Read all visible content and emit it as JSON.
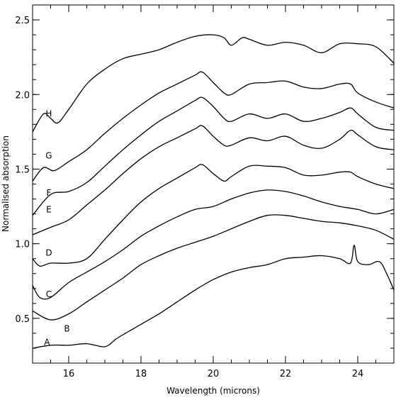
{
  "chart_data": {
    "type": "line",
    "xlabel": "Wavelength (microns)",
    "ylabel": "Normalised absorption",
    "xlim": [
      15.0,
      25.0
    ],
    "ylim": [
      0.2,
      2.6
    ],
    "xticks": [
      16,
      18,
      20,
      22,
      24
    ],
    "yticks": [
      0.5,
      1.0,
      1.5,
      2.0,
      2.5
    ],
    "xtick_labels": [
      "16",
      "18",
      "20",
      "22",
      "24"
    ],
    "ytick_labels": [
      "0.5",
      "1.0",
      "1.5",
      "2.0",
      "2.5"
    ],
    "minor_x_step": 0.5,
    "minor_y_step": 0.1,
    "grid": false,
    "series": [
      {
        "label": "A",
        "label_at": [
          15.4,
          0.34
        ],
        "x": [
          15.0,
          15.5,
          16.0,
          16.5,
          17.0,
          17.3,
          17.5,
          18.0,
          18.5,
          19.0,
          19.5,
          20.0,
          20.5,
          21.0,
          21.5,
          22.0,
          22.5,
          23.0,
          23.5,
          23.8,
          23.9,
          24.0,
          24.3,
          24.6,
          24.8,
          25.0
        ],
        "y": [
          0.3,
          0.32,
          0.32,
          0.33,
          0.31,
          0.36,
          0.39,
          0.46,
          0.53,
          0.61,
          0.69,
          0.76,
          0.81,
          0.84,
          0.86,
          0.9,
          0.91,
          0.92,
          0.9,
          0.87,
          0.99,
          0.88,
          0.86,
          0.88,
          0.8,
          0.69
        ]
      },
      {
        "label": "B",
        "label_at": [
          15.95,
          0.43
        ],
        "x": [
          15.0,
          15.5,
          16.0,
          16.5,
          17.0,
          17.5,
          18.0,
          18.5,
          19.0,
          19.5,
          20.0,
          20.5,
          21.0,
          21.5,
          22.0,
          22.5,
          23.0,
          23.5,
          24.0,
          24.5,
          25.0
        ],
        "y": [
          0.55,
          0.49,
          0.53,
          0.61,
          0.69,
          0.77,
          0.86,
          0.92,
          0.97,
          1.01,
          1.05,
          1.1,
          1.15,
          1.19,
          1.19,
          1.17,
          1.15,
          1.14,
          1.12,
          1.09,
          1.03
        ]
      },
      {
        "label": "C",
        "label_at": [
          15.45,
          0.66
        ],
        "x": [
          15.0,
          15.2,
          15.5,
          16.0,
          16.5,
          17.0,
          17.5,
          18.0,
          18.5,
          19.0,
          19.5,
          20.0,
          20.5,
          21.0,
          21.5,
          22.0,
          22.5,
          23.0,
          23.5,
          24.0,
          24.5,
          25.0
        ],
        "y": [
          0.72,
          0.64,
          0.64,
          0.74,
          0.81,
          0.88,
          0.96,
          1.05,
          1.12,
          1.18,
          1.23,
          1.25,
          1.3,
          1.34,
          1.36,
          1.35,
          1.32,
          1.28,
          1.25,
          1.23,
          1.2,
          1.23
        ]
      },
      {
        "label": "D",
        "label_at": [
          15.45,
          0.94
        ],
        "x": [
          15.0,
          15.2,
          15.5,
          16.0,
          16.5,
          17.0,
          17.5,
          18.0,
          18.5,
          19.0,
          19.5,
          19.7,
          20.0,
          20.3,
          20.5,
          21.0,
          21.5,
          22.0,
          22.5,
          23.0,
          23.5,
          23.8,
          24.0,
          24.5,
          25.0
        ],
        "y": [
          0.9,
          0.85,
          0.87,
          0.87,
          0.9,
          1.03,
          1.16,
          1.28,
          1.37,
          1.44,
          1.51,
          1.53,
          1.47,
          1.42,
          1.45,
          1.52,
          1.52,
          1.51,
          1.46,
          1.46,
          1.48,
          1.48,
          1.45,
          1.4,
          1.37
        ]
      },
      {
        "label": "E",
        "label_at": [
          15.45,
          1.23
        ],
        "x": [
          15.0,
          15.5,
          16.0,
          16.5,
          17.0,
          17.5,
          18.0,
          18.5,
          19.0,
          19.5,
          19.7,
          20.0,
          20.3,
          20.5,
          21.0,
          21.5,
          22.0,
          22.5,
          23.0,
          23.5,
          23.8,
          24.0,
          24.5,
          25.0
        ],
        "y": [
          1.06,
          1.11,
          1.16,
          1.26,
          1.36,
          1.47,
          1.57,
          1.65,
          1.71,
          1.77,
          1.79,
          1.72,
          1.66,
          1.66,
          1.71,
          1.69,
          1.72,
          1.66,
          1.64,
          1.7,
          1.76,
          1.73,
          1.65,
          1.63
        ]
      },
      {
        "label": "F",
        "label_at": [
          15.45,
          1.34
        ],
        "x": [
          15.0,
          15.5,
          16.0,
          16.5,
          17.0,
          17.5,
          18.0,
          18.5,
          19.0,
          19.5,
          19.7,
          20.0,
          20.3,
          20.5,
          21.0,
          21.5,
          22.0,
          22.5,
          23.0,
          23.5,
          23.8,
          24.0,
          24.5,
          25.0
        ],
        "y": [
          1.19,
          1.33,
          1.35,
          1.41,
          1.52,
          1.63,
          1.73,
          1.82,
          1.89,
          1.96,
          1.98,
          1.92,
          1.84,
          1.82,
          1.87,
          1.84,
          1.87,
          1.82,
          1.84,
          1.88,
          1.91,
          1.87,
          1.78,
          1.76
        ]
      },
      {
        "label": "G",
        "label_at": [
          15.45,
          1.59
        ],
        "x": [
          15.0,
          15.3,
          15.6,
          16.0,
          16.5,
          17.0,
          17.5,
          18.0,
          18.5,
          19.0,
          19.5,
          19.7,
          20.0,
          20.3,
          20.5,
          21.0,
          21.5,
          22.0,
          22.5,
          23.0,
          23.5,
          23.8,
          24.0,
          24.5,
          25.0
        ],
        "y": [
          1.42,
          1.51,
          1.49,
          1.55,
          1.63,
          1.74,
          1.84,
          1.93,
          2.01,
          2.07,
          2.13,
          2.15,
          2.08,
          2.01,
          2.0,
          2.07,
          2.08,
          2.09,
          2.05,
          2.04,
          2.07,
          2.07,
          2.01,
          1.95,
          1.91
        ]
      },
      {
        "label": "H",
        "label_at": [
          15.45,
          1.87
        ],
        "x": [
          15.0,
          15.3,
          15.5,
          15.7,
          16.0,
          16.5,
          17.0,
          17.5,
          18.0,
          18.5,
          19.0,
          19.5,
          20.0,
          20.3,
          20.5,
          20.8,
          21.0,
          21.5,
          22.0,
          22.5,
          23.0,
          23.5,
          24.0,
          24.5,
          25.0
        ],
        "y": [
          1.75,
          1.87,
          1.84,
          1.81,
          1.9,
          2.07,
          2.17,
          2.24,
          2.27,
          2.3,
          2.35,
          2.39,
          2.4,
          2.38,
          2.33,
          2.38,
          2.37,
          2.33,
          2.35,
          2.33,
          2.28,
          2.34,
          2.34,
          2.32,
          2.21
        ]
      }
    ]
  }
}
